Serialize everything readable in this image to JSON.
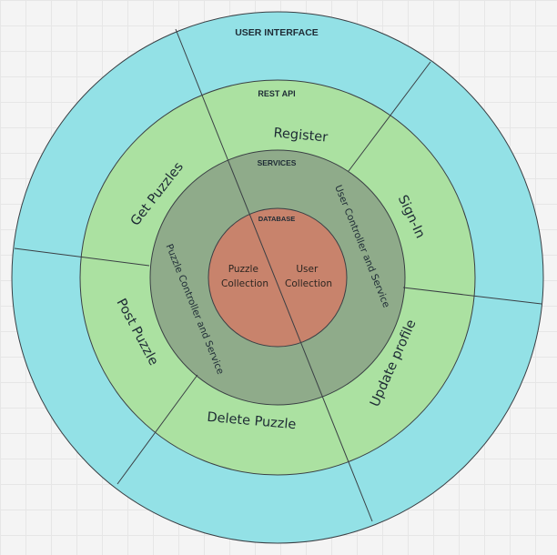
{
  "rings": {
    "ui": {
      "title": "USER INTERFACE",
      "color": "#93e1e6"
    },
    "api": {
      "title": "REST API",
      "color": "#abe1a1"
    },
    "services": {
      "title": "SERVICES",
      "color": "#8fab8a"
    },
    "database": {
      "title": "DATABASE",
      "color": "#c8836c"
    }
  },
  "api_segments": {
    "register": "Register",
    "sign_in": "Sign-In",
    "get_puzzles": "Get Puzzles",
    "post_puzzle": "Post Puzzle",
    "delete_puzzle": "Delete Puzzle",
    "update_profile": "Update profile"
  },
  "services_segments": {
    "user_controller": "User Controller and Service",
    "puzzle_controller": "Puzzle Controller and Service"
  },
  "database_segments": {
    "puzzle_collection": [
      "Puzzle",
      "Collection"
    ],
    "user_collection": [
      "User",
      "Collection"
    ]
  },
  "stroke_color": "#3a3f44"
}
